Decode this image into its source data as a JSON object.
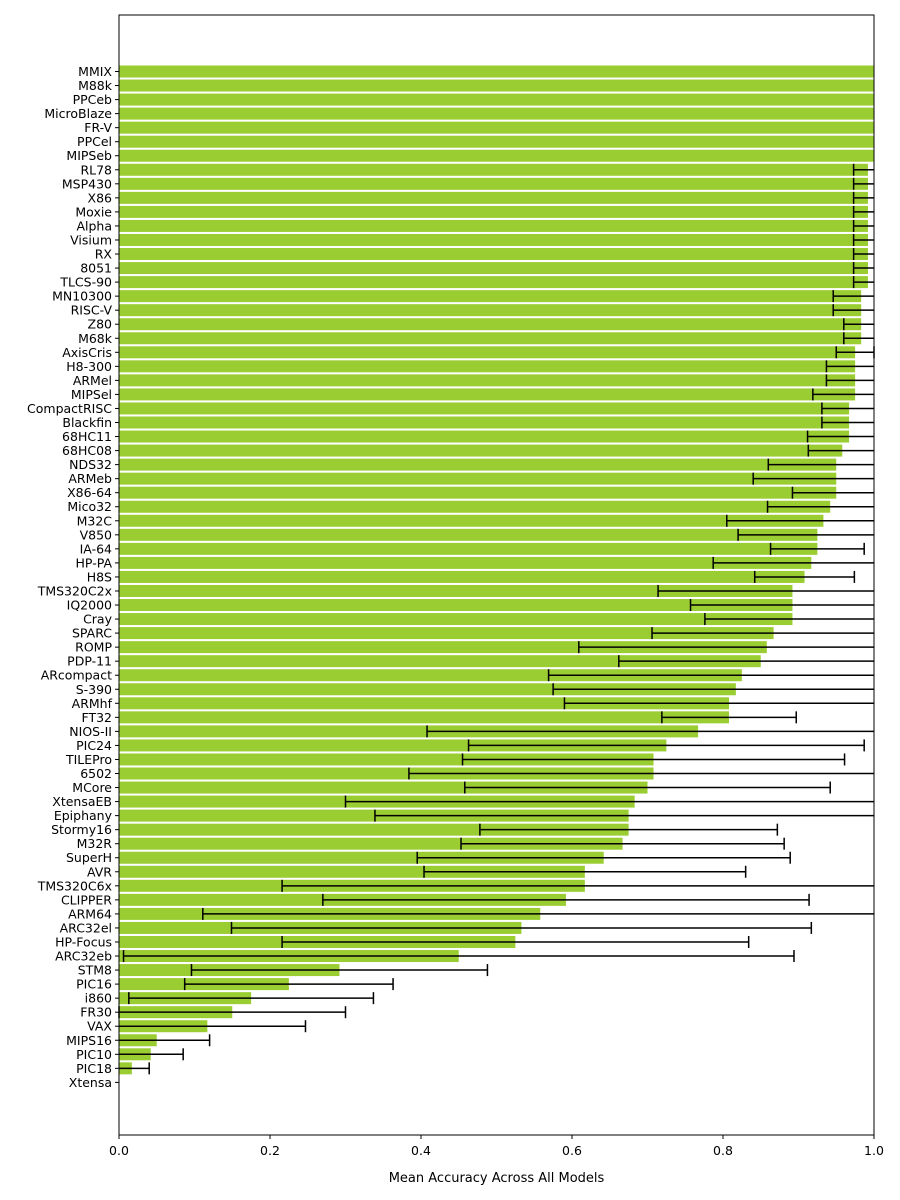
{
  "chart_data": {
    "type": "bar",
    "orientation": "horizontal",
    "xlabel": "Mean Accuracy Across All Models",
    "ylabel": "",
    "xlim": [
      0.0,
      1.0
    ],
    "xticks": [
      "0.0",
      "0.2",
      "0.4",
      "0.6",
      "0.8",
      "1.0"
    ],
    "xtick_values": [
      0.0,
      0.2,
      0.4,
      0.6,
      0.8,
      1.0
    ],
    "grid": false,
    "bar_color": "#9acd32",
    "error_bar_color": "#000000",
    "categories": [
      "MMIX",
      "M88k",
      "PPCeb",
      "MicroBlaze",
      "FR-V",
      "PPCel",
      "MIPSeb",
      "RL78",
      "MSP430",
      "X86",
      "Moxie",
      "Alpha",
      "Visium",
      "RX",
      "8051",
      "TLCS-90",
      "MN10300",
      "RISC-V",
      "Z80",
      "M68k",
      "AxisCris",
      "H8-300",
      "ARMel",
      "MIPSel",
      "CompactRISC",
      "Blackfin",
      "68HC11",
      "68HC08",
      "NDS32",
      "ARMeb",
      "X86-64",
      "Mico32",
      "M32C",
      "V850",
      "IA-64",
      "HP-PA",
      "H8S",
      "TMS320C2x",
      "IQ2000",
      "Cray",
      "SPARC",
      "ROMP",
      "PDP-11",
      "ARcompact",
      "S-390",
      "ARMhf",
      "FT32",
      "NIOS-II",
      "PIC24",
      "TILEPro",
      "6502",
      "MCore",
      "XtensaEB",
      "Epiphany",
      "Stormy16",
      "M32R",
      "SuperH",
      "AVR",
      "TMS320C6x",
      "CLIPPER",
      "ARM64",
      "ARC32el",
      "HP-Focus",
      "ARC32eb",
      "STM8",
      "PIC16",
      "i860",
      "FR30",
      "VAX",
      "MIPS16",
      "PIC10",
      "PIC18",
      "Xtensa"
    ],
    "values": [
      1.0,
      1.0,
      1.0,
      1.0,
      1.0,
      1.0,
      1.0,
      0.992,
      0.992,
      0.992,
      0.992,
      0.992,
      0.992,
      0.992,
      0.992,
      0.992,
      0.983,
      0.983,
      0.983,
      0.983,
      0.975,
      0.975,
      0.975,
      0.975,
      0.967,
      0.967,
      0.967,
      0.958,
      0.95,
      0.95,
      0.95,
      0.942,
      0.933,
      0.925,
      0.925,
      0.917,
      0.908,
      0.892,
      0.892,
      0.892,
      0.867,
      0.858,
      0.85,
      0.825,
      0.817,
      0.808,
      0.808,
      0.767,
      0.725,
      0.708,
      0.708,
      0.7,
      0.683,
      0.675,
      0.675,
      0.667,
      0.642,
      0.617,
      0.617,
      0.592,
      0.558,
      0.533,
      0.525,
      0.45,
      0.292,
      0.225,
      0.175,
      0.15,
      0.117,
      0.05,
      0.042,
      0.017,
      0.0
    ],
    "errors": [
      0,
      0,
      0,
      0,
      0,
      0,
      0,
      0.019,
      0.019,
      0.019,
      0.019,
      0.019,
      0.019,
      0.019,
      0.019,
      0.019,
      0.037,
      0.037,
      0.023,
      0.023,
      0.025,
      0.038,
      0.038,
      0.056,
      0.036,
      0.036,
      0.055,
      0.045,
      0.09,
      0.11,
      0.058,
      0.083,
      0.128,
      0.105,
      0.062,
      0.13,
      0.066,
      0.178,
      0.135,
      0.116,
      0.161,
      0.249,
      0.188,
      0.256,
      0.242,
      0.218,
      0.089,
      0.359,
      0.262,
      0.253,
      0.324,
      0.242,
      0.383,
      0.336,
      0.197,
      0.214,
      0.247,
      0.213,
      0.401,
      0.322,
      0.447,
      0.384,
      0.309,
      0.444,
      0.196,
      0.138,
      0.162,
      0.15,
      0.13,
      0.07,
      0.043,
      0.023,
      0.0
    ]
  }
}
